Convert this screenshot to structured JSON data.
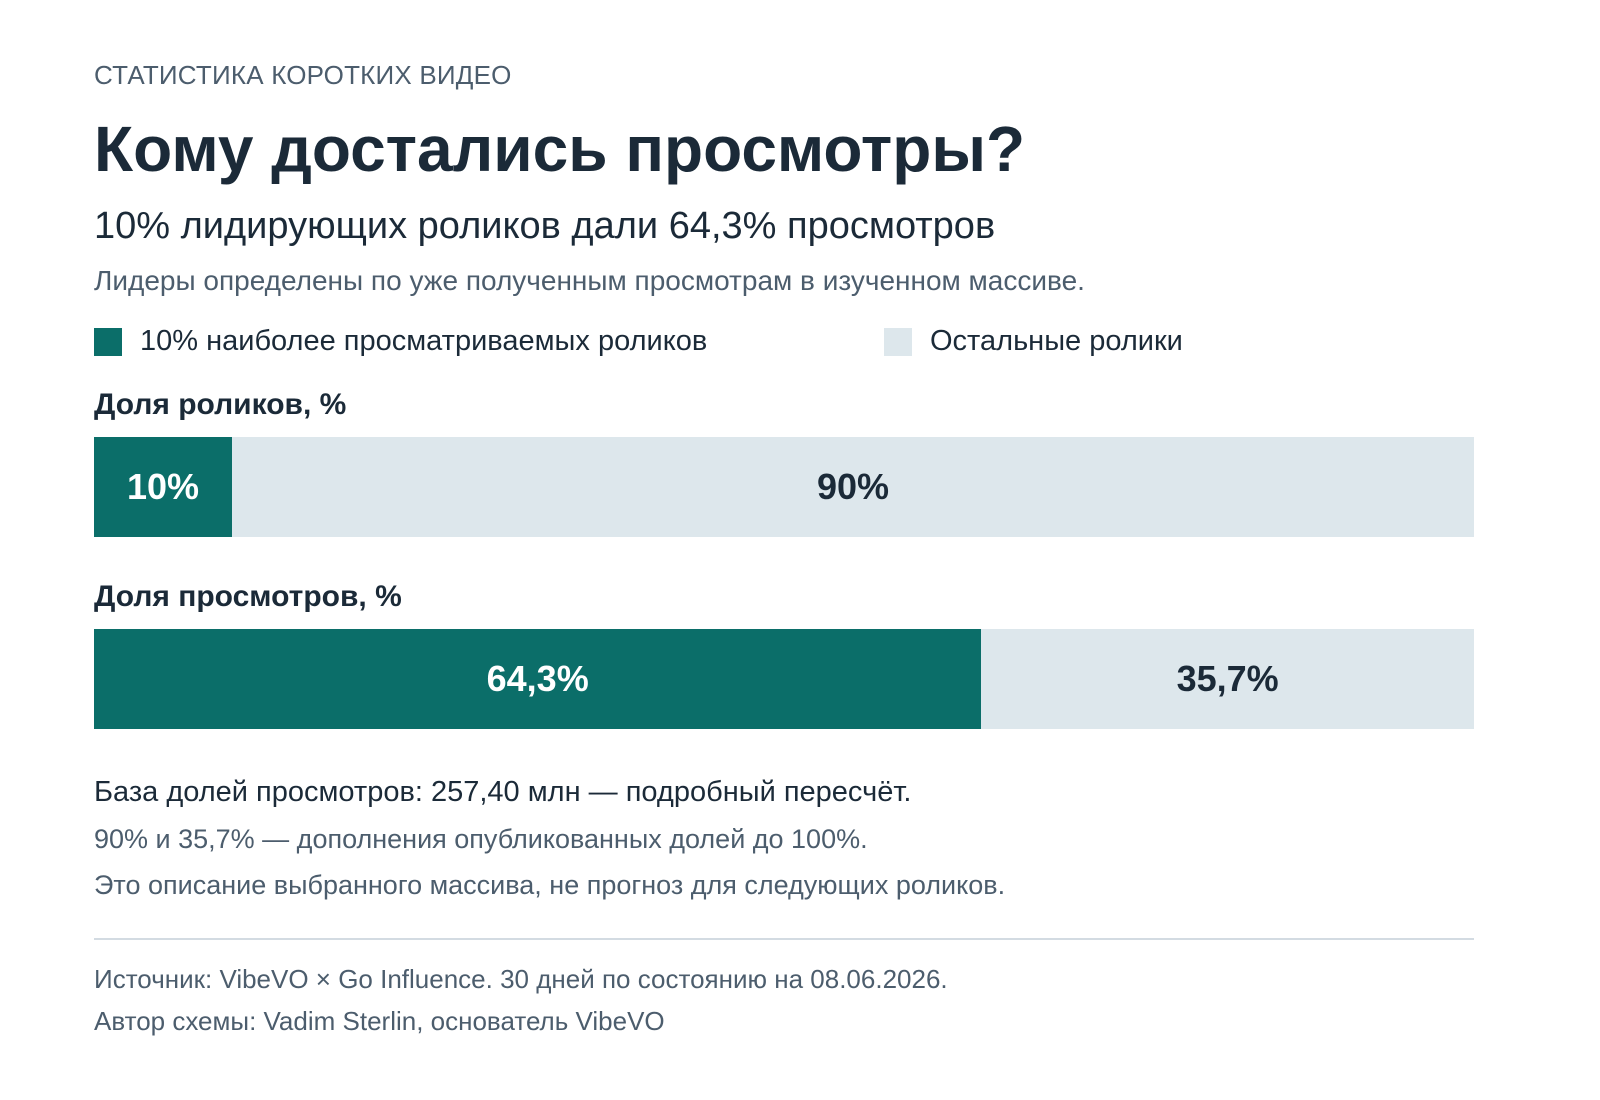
{
  "header": {
    "kicker": "СТАТИСТИКА КОРОТКИХ ВИДЕО",
    "title": "Кому достались просмотры?",
    "subtitle": "10% лидирующих роликов дали 64,3% просмотров",
    "note": "Лидеры определены по уже полученным просмотрам в изученном массиве."
  },
  "colors": {
    "top": "#0b6e69",
    "rest": "#dde7ec",
    "top_text": "#ffffff",
    "rest_text": "#1b2a38"
  },
  "chart_data": {
    "type": "bar",
    "orientation": "horizontal",
    "stacked": true,
    "unit": "%",
    "legend_position": "top",
    "series": [
      {
        "name": "10% наиболее просматриваемых роликов",
        "color": "#0b6e69"
      },
      {
        "name": "Остальные ролики",
        "color": "#dde7ec"
      }
    ],
    "bars": [
      {
        "label": "Доля роликов, %",
        "segments": [
          {
            "value": 10,
            "label": "10%"
          },
          {
            "value": 90,
            "label": "90%"
          }
        ]
      },
      {
        "label": "Доля просмотров, %",
        "segments": [
          {
            "value": 64.3,
            "label": "64,3%"
          },
          {
            "value": 35.7,
            "label": "35,7%"
          }
        ]
      }
    ]
  },
  "footnotes": {
    "base": "База долей просмотров: 257,40 млн — подробный пересчёт.",
    "complement": "90% и 35,7% — дополнения опубликованных долей до 100%.",
    "disclaimer": "Это описание выбранного массива, не прогноз для следующих роликов."
  },
  "footer": {
    "source": "Источник: VibeVO × Go Influence. 30 дней по состоянию на 08.06.2026.",
    "author": "Автор схемы: Vadim Sterlin, основатель VibeVO"
  }
}
